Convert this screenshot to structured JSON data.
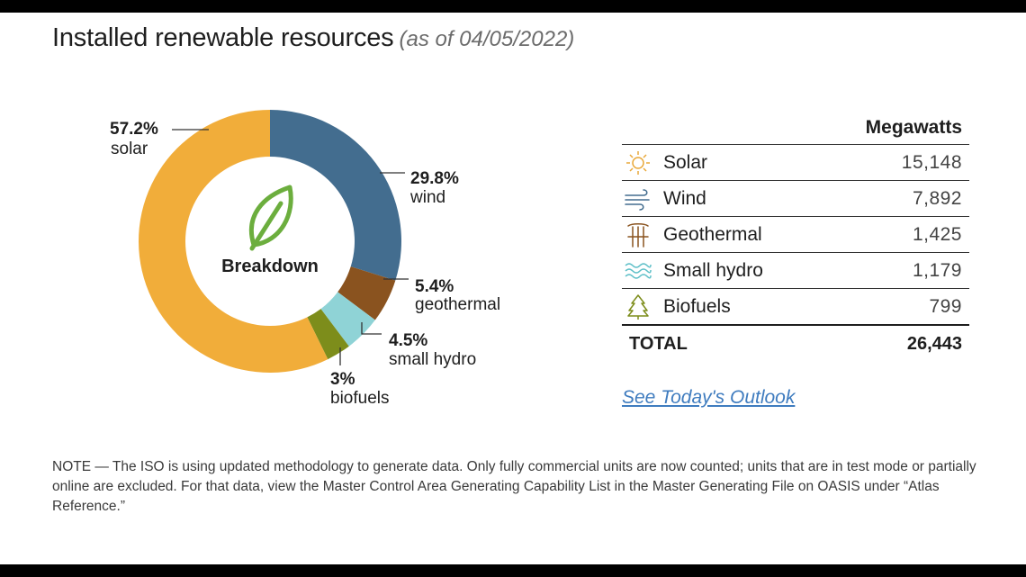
{
  "header": {
    "title": "Installed renewable resources",
    "subtitle": "(as of 04/05/2022)"
  },
  "chart_data": {
    "type": "pie",
    "center_label": "Breakdown",
    "slices": [
      {
        "label": "wind",
        "pct_label": "29.8%",
        "value": 29.8,
        "color": "#436d8f"
      },
      {
        "label": "geothermal",
        "pct_label": "5.4%",
        "value": 5.4,
        "color": "#8a531f"
      },
      {
        "label": "small hydro",
        "pct_label": "4.5%",
        "value": 4.5,
        "color": "#8fd3d6"
      },
      {
        "label": "biofuels",
        "pct_label": "3%",
        "value": 3.0,
        "color": "#7d8d1b"
      },
      {
        "label": "solar",
        "pct_label": "57.2%",
        "value": 57.2,
        "color": "#f1ad3a"
      }
    ]
  },
  "table": {
    "unit_header": "Megawatts",
    "rows": [
      {
        "name": "Solar",
        "value": "15,148",
        "icon": "sun-icon"
      },
      {
        "name": "Wind",
        "value": "7,892",
        "icon": "wind-icon"
      },
      {
        "name": "Geothermal",
        "value": "1,425",
        "icon": "geothermal-icon"
      },
      {
        "name": "Small hydro",
        "value": "1,179",
        "icon": "water-icon"
      },
      {
        "name": "Biofuels",
        "value": "799",
        "icon": "tree-icon"
      }
    ],
    "total_label": "TOTAL",
    "total_value": "26,443"
  },
  "link": {
    "label": "See Today's Outlook"
  },
  "note": "NOTE — The ISO is using updated methodology to generate data. Only fully commercial units are now counted; units that are in test mode or partially online are excluded. For that data, view the Master Control Area Generating Capability List in the Master Generating File on OASIS under “Atlas Reference.”"
}
